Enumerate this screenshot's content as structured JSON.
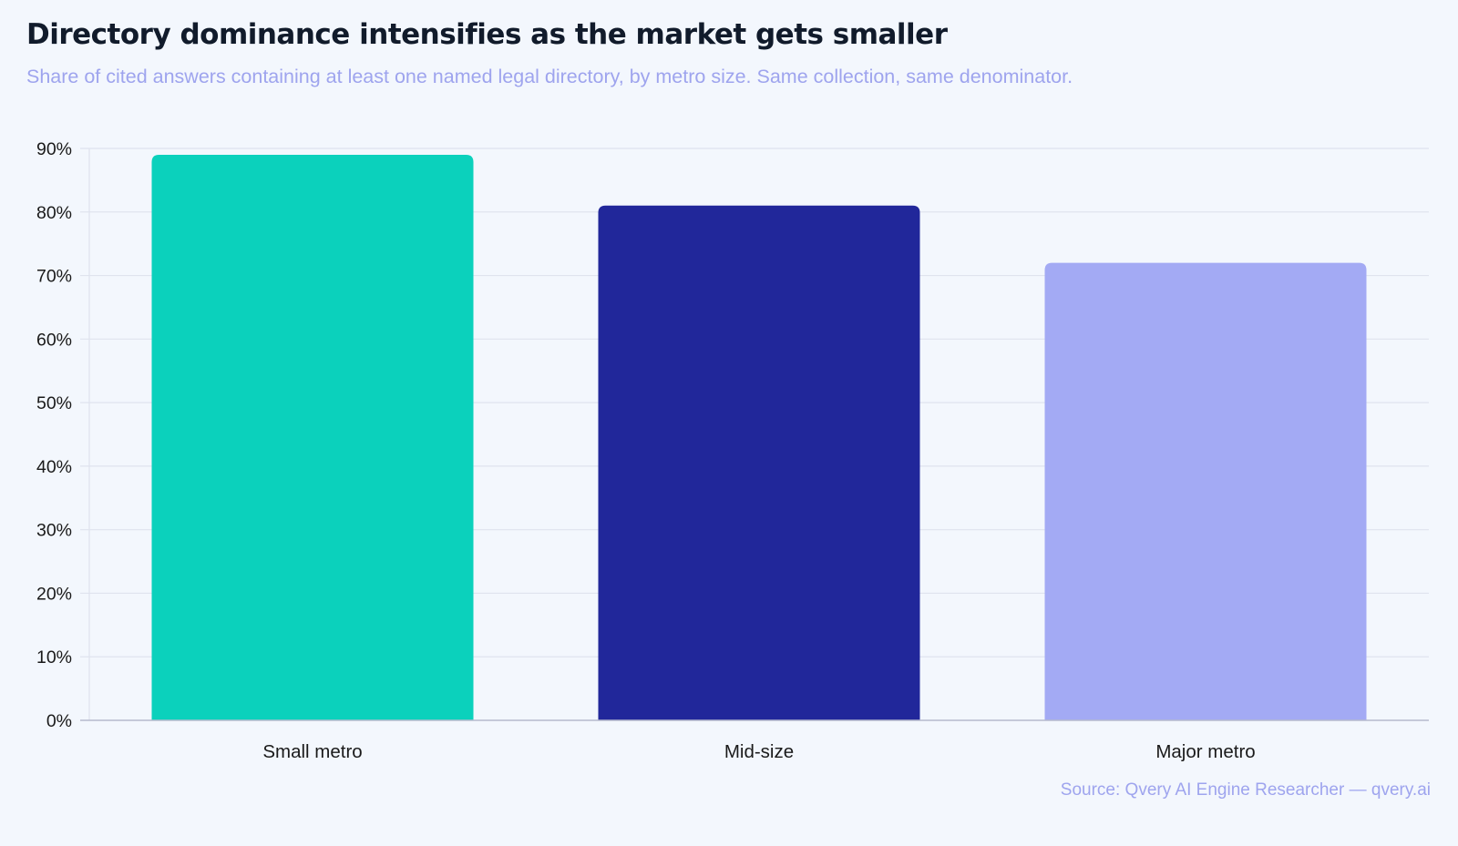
{
  "chart_data": {
    "type": "bar",
    "title": "Directory dominance intensifies as the market gets smaller",
    "subtitle": "Share of cited answers containing at least one named legal directory, by metro size. Same collection, same denominator.",
    "categories": [
      "Small metro",
      "Mid-size",
      "Major metro"
    ],
    "values": [
      89,
      81,
      72
    ],
    "bar_colors": [
      "#0bd1bc",
      "#21279a",
      "#a3aaf4"
    ],
    "ylim": [
      0,
      90
    ],
    "yticks": [
      {
        "value": 0,
        "label": "0%"
      },
      {
        "value": 10,
        "label": "10%"
      },
      {
        "value": 20,
        "label": "20%"
      },
      {
        "value": 30,
        "label": "30%"
      },
      {
        "value": 40,
        "label": "40%"
      },
      {
        "value": 50,
        "label": "50%"
      },
      {
        "value": 60,
        "label": "60%"
      },
      {
        "value": 70,
        "label": "70%"
      },
      {
        "value": 80,
        "label": "80%"
      },
      {
        "value": 90,
        "label": "90%"
      }
    ],
    "grid": true,
    "source": "Source: Qvery AI Engine Researcher — qvery.ai"
  },
  "colors": {
    "title": "#111b2b",
    "subtitle": "#9ea4ee",
    "source": "#9ea4ee",
    "gridline": "#dfe3ee",
    "axis": "#b6bacd",
    "tick_text": "#1a1a1a"
  }
}
